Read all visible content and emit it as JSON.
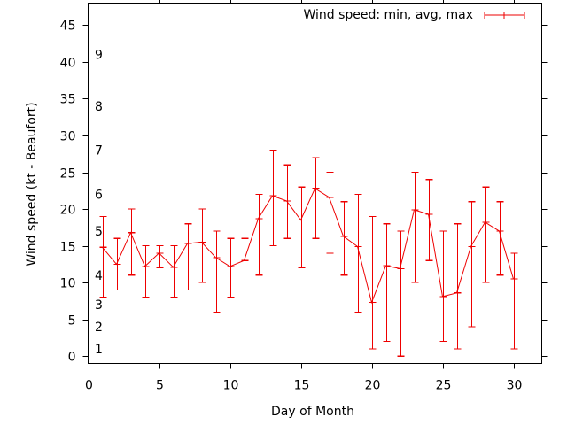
{
  "chart_data": {
    "type": "line",
    "title": "",
    "xlabel": "Day of Month",
    "ylabel": "Wind speed (kt - Beaufort)",
    "xlim": [
      0,
      32
    ],
    "ylim": [
      -1,
      48
    ],
    "grid": false,
    "legend": {
      "position": "top-right",
      "entries": [
        "Wind speed: min, avg, max"
      ]
    },
    "x_ticks": [
      "0",
      "5",
      "10",
      "15",
      "20",
      "25",
      "30"
    ],
    "x_tick_values": [
      0,
      5,
      10,
      15,
      20,
      25,
      30
    ],
    "y_ticks": [
      "0",
      "5",
      "10",
      "15",
      "20",
      "25",
      "30",
      "35",
      "40",
      "45"
    ],
    "y_tick_values": [
      0,
      5,
      10,
      15,
      20,
      25,
      30,
      35,
      40,
      45
    ],
    "beaufort_labels": [
      {
        "label": "1",
        "y": 1
      },
      {
        "label": "2",
        "y": 4
      },
      {
        "label": "3",
        "y": 7
      },
      {
        "label": "4",
        "y": 11
      },
      {
        "label": "5",
        "y": 17
      },
      {
        "label": "6",
        "y": 22
      },
      {
        "label": "7",
        "y": 28
      },
      {
        "label": "8",
        "y": 34
      },
      {
        "label": "9",
        "y": 41
      }
    ],
    "series": [
      {
        "name": "Wind speed: min, avg, max",
        "color": "#ee0000",
        "x": [
          1,
          2,
          3,
          4,
          5,
          6,
          7,
          8,
          9,
          10,
          11,
          12,
          13,
          14,
          15,
          16,
          17,
          18,
          19,
          20,
          21,
          22,
          23,
          24,
          25,
          26,
          27,
          28,
          29,
          30
        ],
        "avg": [
          14.8,
          12.5,
          16.8,
          12.2,
          14.0,
          12.1,
          15.3,
          15.5,
          13.4,
          12.2,
          13.0,
          18.7,
          21.8,
          21.1,
          18.5,
          22.8,
          21.6,
          16.3,
          14.9,
          7.3,
          12.3,
          11.9,
          19.9,
          19.3,
          8.1,
          8.6,
          14.9,
          18.2,
          17.0,
          10.5
        ],
        "min": [
          8,
          9,
          11,
          8,
          12,
          8,
          9,
          10,
          6,
          8,
          9,
          11,
          15,
          16,
          12,
          16,
          14,
          11,
          6,
          1,
          2,
          0,
          10,
          13,
          2,
          1,
          4,
          10,
          11,
          1
        ],
        "max": [
          19,
          16,
          20,
          15,
          15,
          15,
          18,
          20,
          17,
          16,
          16,
          22,
          28,
          26,
          23,
          27,
          25,
          21,
          22,
          19,
          18,
          17,
          25,
          24,
          17,
          18,
          21,
          23,
          21,
          14
        ]
      }
    ]
  }
}
